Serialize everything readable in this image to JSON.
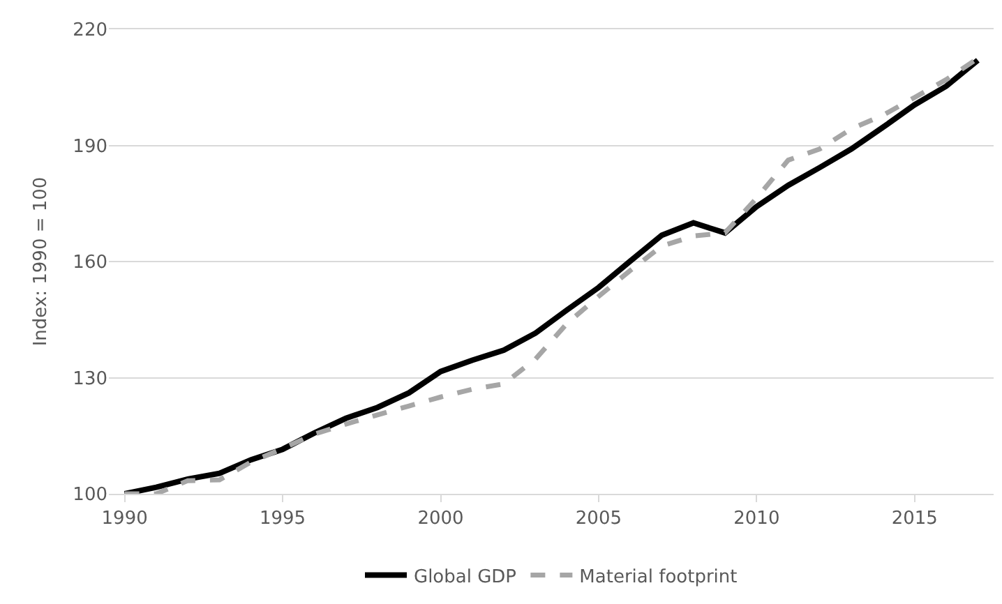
{
  "chart_data": {
    "type": "line",
    "ylabel": "Index: 1990 = 100",
    "x": [
      1990,
      1991,
      1992,
      1993,
      1994,
      1995,
      1996,
      1997,
      1998,
      1999,
      2000,
      2001,
      2002,
      2003,
      2004,
      2005,
      2006,
      2007,
      2008,
      2009,
      2010,
      2011,
      2012,
      2013,
      2014,
      2015,
      2016,
      2017
    ],
    "series": [
      {
        "name": "Global GDP",
        "color": "#000000",
        "line_style": "solid",
        "values": [
          100,
          101.7,
          103.8,
          105.3,
          108.8,
          111.5,
          115.7,
          119.5,
          122.3,
          126.1,
          131.6,
          134.5,
          137.1,
          141.5,
          147.5,
          153.3,
          160.1,
          166.8,
          170.0,
          167.4,
          174.2,
          179.7,
          184.3,
          189.1,
          194.7,
          200.5,
          205.3,
          212
        ]
      },
      {
        "name": "Material footprint",
        "color": "#a6a6a6",
        "line_style": "dashed",
        "values": [
          100,
          100,
          103.4,
          103.6,
          108.2,
          111.7,
          115.4,
          118.0,
          120.4,
          122.7,
          125.0,
          127.0,
          128.4,
          134.8,
          144.0,
          151.0,
          157.7,
          164.0,
          166.6,
          167.4,
          176.4,
          186.2,
          189.1,
          194.3,
          197.8,
          202.4,
          207.0,
          212.5
        ]
      }
    ],
    "xlim": [
      1989.5,
      2017.5
    ],
    "xticks": [
      1990,
      1995,
      2000,
      2005,
      2010,
      2015
    ],
    "ylim": [
      100,
      220
    ],
    "yticks": [
      100,
      130,
      160,
      190,
      220
    ],
    "grid": "y",
    "legend": "bottom",
    "marker": "none"
  }
}
